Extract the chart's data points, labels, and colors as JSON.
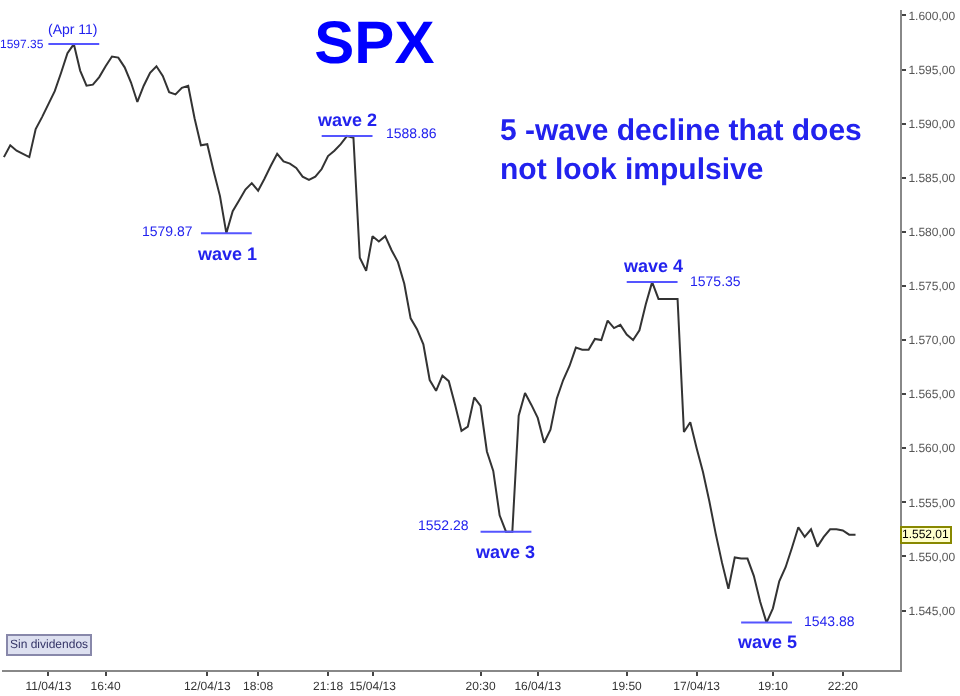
{
  "chart_data": {
    "type": "line",
    "title": "SPX",
    "subtitle": "5 -wave decline that does\nnot look impulsive",
    "categories": [
      null,
      null,
      null,
      null,
      null,
      null,
      null,
      "11/04/13",
      null,
      null,
      null,
      null,
      null,
      null,
      null,
      null,
      "16:40",
      null,
      null,
      null,
      null,
      null,
      null,
      null,
      null,
      null,
      null,
      null,
      null,
      null,
      null,
      null,
      "12/04/13",
      null,
      null,
      null,
      null,
      null,
      null,
      null,
      "18:08",
      null,
      null,
      null,
      null,
      null,
      null,
      null,
      null,
      null,
      null,
      "21:18",
      null,
      null,
      null,
      null,
      null,
      null,
      "15/04/13",
      null,
      null,
      null,
      null,
      null,
      null,
      null,
      null,
      null,
      null,
      null,
      null,
      null,
      null,
      null,
      null,
      "20:30",
      null,
      null,
      null,
      null,
      null,
      null,
      null,
      null,
      "16/04/13",
      null,
      null,
      null,
      null,
      null,
      null,
      null,
      null,
      null,
      null,
      null,
      null,
      null,
      "19:50",
      null,
      null,
      null,
      null,
      null,
      null,
      null,
      null,
      null,
      null,
      "17/04/13",
      null,
      null,
      null,
      null,
      null,
      null,
      null,
      null,
      null,
      null,
      null,
      "19:10",
      null,
      null,
      null,
      null,
      null,
      null,
      null,
      null,
      null,
      null,
      "22:20",
      null,
      null
    ],
    "series": [
      {
        "color": "#333333",
        "values": [
          1586.9,
          1588,
          1587.5,
          1587.2,
          1586.9,
          1589.5,
          1590.6,
          1591.8,
          1593,
          1594.7,
          1596.5,
          1597.35,
          1594.9,
          1593.5,
          1593.6,
          1594.3,
          1595.3,
          1596.2,
          1596.1,
          1595.2,
          1593.8,
          1592,
          1593.5,
          1594.7,
          1595.3,
          1594.4,
          1592.9,
          1592.7,
          1593.3,
          1593.5,
          1590.5,
          1588,
          1588.1,
          1585.6,
          1583.3,
          1579.87,
          1581.9,
          1582.9,
          1583.9,
          1584.5,
          1583.8,
          1584.9,
          1586.1,
          1587.2,
          1586.5,
          1586.3,
          1585.9,
          1585.1,
          1584.8,
          1585.1,
          1585.8,
          1587,
          1587.5,
          1588.1,
          1588.86,
          1588.7,
          1577.6,
          1576.4,
          1579.6,
          1579.1,
          1579.6,
          1578.3,
          1577.2,
          1575.2,
          1572,
          1571,
          1569.6,
          1566.3,
          1565.3,
          1566.7,
          1566.2,
          1564,
          1561.6,
          1562,
          1564.7,
          1563.9,
          1559.7,
          1557.9,
          1553.8,
          1552.28,
          1552.28,
          1563,
          1565.1,
          1564,
          1562.8,
          1560.5,
          1561.7,
          1564.6,
          1566.3,
          1567.6,
          1569.3,
          1569.1,
          1569.1,
          1570.1,
          1570,
          1571.8,
          1571.1,
          1571.4,
          1570.5,
          1570,
          1570.9,
          1573.3,
          1575.35,
          1573.8,
          1573.8,
          1573.8,
          1573.8,
          1561.5,
          1562.4,
          1560,
          1557.8,
          1555.1,
          1552.1,
          1549.4,
          1547,
          1549.9,
          1549.8,
          1549.8,
          1548.2,
          1545.8,
          1543.88,
          1545.2,
          1547.7,
          1549,
          1550.8,
          1552.7,
          1551.8,
          1552.5,
          1550.9,
          1551.8,
          1552.5,
          1552.5,
          1552.4,
          1552.01,
          1552.01
        ]
      }
    ],
    "ylim": [
      1539.5,
      1600.5
    ],
    "yticks": [
      {
        "value": 1545,
        "label": "1.545,00"
      },
      {
        "value": 1550,
        "label": "1.550,00"
      },
      {
        "value": 1555,
        "label": "1.555,00"
      },
      {
        "value": 1560,
        "label": "1.560,00"
      },
      {
        "value": 1565,
        "label": "1.565,00"
      },
      {
        "value": 1570,
        "label": "1.570,00"
      },
      {
        "value": 1575,
        "label": "1.575,00"
      },
      {
        "value": 1580,
        "label": "1.580,00"
      },
      {
        "value": 1585,
        "label": "1.585,00"
      },
      {
        "value": 1590,
        "label": "1.590,00"
      },
      {
        "value": 1595,
        "label": "1.595,00"
      },
      {
        "value": 1600,
        "label": "1.600,00"
      }
    ],
    "grid": false,
    "marker": "none",
    "line_style": "solid",
    "annotations": [
      {
        "text": "(Apr 11)",
        "y": 1597.35
      },
      "1597.35",
      {
        "text": "wave 1",
        "y": 1579.87
      },
      "1579.87",
      {
        "text": "wave 2",
        "y": 1588.86
      },
      "1588.86",
      {
        "text": "wave 3",
        "y": 1552.28
      },
      "1552.28",
      {
        "text": "wave 4",
        "y": 1575.35
      },
      "1575.35",
      {
        "text": "wave 5",
        "y": 1543.88
      },
      "1543.88",
      "1.552,01",
      "Sin dividendos"
    ]
  }
}
